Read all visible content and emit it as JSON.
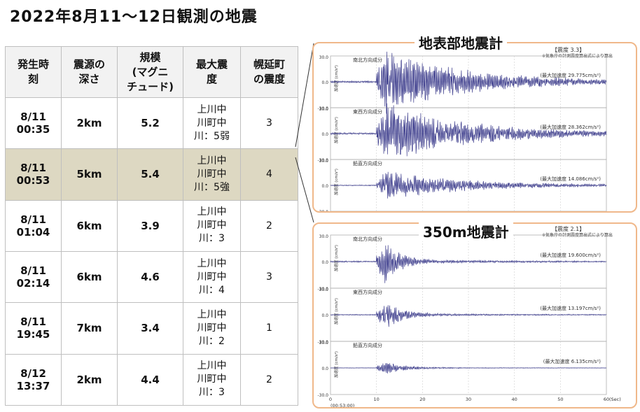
{
  "title": "2022年8月11〜12日観測の地震",
  "table": {
    "headers": [
      "発生時刻",
      "震源の深さ",
      "規模(マグニチュード)",
      "最大震度",
      "幌延町の震度"
    ],
    "header_lines": [
      [
        "発生時",
        "刻"
      ],
      [
        "震源の",
        "深さ"
      ],
      [
        "規模",
        "(マグニ",
        "チュード)"
      ],
      [
        "最大震",
        "度"
      ],
      [
        "幌延町",
        "の震度"
      ]
    ],
    "rows": [
      {
        "date": "8/11",
        "time": "00:35",
        "depth": "2km",
        "mag": "5.2",
        "loc1": "上川中",
        "loc2": "川町中",
        "loc3": "川：5弱",
        "horonobe": "3"
      },
      {
        "date": "8/11",
        "time": "00:53",
        "depth": "5km",
        "mag": "5.4",
        "loc1": "上川中",
        "loc2": "川町中",
        "loc3": "川：5強",
        "horonobe": "4"
      },
      {
        "date": "8/11",
        "time": "01:04",
        "depth": "6km",
        "mag": "3.9",
        "loc1": "上川中",
        "loc2": "川町中",
        "loc3": "川：3",
        "horonobe": "2"
      },
      {
        "date": "8/11",
        "time": "02:14",
        "depth": "6km",
        "mag": "4.6",
        "loc1": "上川中",
        "loc2": "川町中",
        "loc3": "川：4",
        "horonobe": "3"
      },
      {
        "date": "8/11",
        "time": "19:45",
        "depth": "7km",
        "mag": "3.4",
        "loc1": "上川中",
        "loc2": "川町中",
        "loc3": "川：2",
        "horonobe": "1"
      },
      {
        "date": "8/12",
        "time": "13:37",
        "depth": "2km",
        "mag": "4.4",
        "loc1": "上川中",
        "loc2": "川町中",
        "loc3": "川：3",
        "horonobe": "2"
      }
    ],
    "highlight_row": 1,
    "highlight_color": "#ddd8c2"
  },
  "surface_panel": {
    "title": "地表部地震計",
    "intensity": "【震度 3.3】",
    "note": "※気象庁の計測震度算出式により算出",
    "traces": [
      {
        "label": "南北方向成分",
        "max": "(最大加速度 29.775cm/s²)",
        "amp": 1.0,
        "decay": 0.06
      },
      {
        "label": "東西方向成分",
        "max": "(最大加速度 28.362cm/s²)",
        "amp": 0.95,
        "decay": 0.06
      },
      {
        "label": "鉛直方向成分",
        "max": "(最大加速度 14.086cm/s²)",
        "amp": 0.45,
        "decay": 0.06
      }
    ]
  },
  "deep_panel": {
    "title": "350m地震計",
    "intensity": "【震度 2.1】",
    "note": "※気象庁の計測震度算出式により算出",
    "traces": [
      {
        "label": "南北方向成分",
        "max": "(最大加速度 19.600cm/s²)",
        "amp": 0.7,
        "decay": 0.35
      },
      {
        "label": "東西方向成分",
        "max": "(最大加速度 13.197cm/s²)",
        "amp": 0.45,
        "decay": 0.3
      },
      {
        "label": "鉛直方向成分",
        "max": "(最大加速度 6.135cm/s²)",
        "amp": 0.2,
        "decay": 0.25
      }
    ]
  },
  "axis": {
    "y_top": "30.0",
    "y_mid": "0.0",
    "y_bot": "-30.0",
    "y_unit": "加速度 (cm/s²)",
    "x_ticks": [
      "0",
      "10",
      "20",
      "30",
      "40",
      "50",
      "60"
    ],
    "x_unit": "(Sec)",
    "start_time": "(00:53:00)"
  },
  "colors": {
    "panel_border": "#f0b88a",
    "trace": "#3c3c8c",
    "grid": "#b0b0b0"
  }
}
